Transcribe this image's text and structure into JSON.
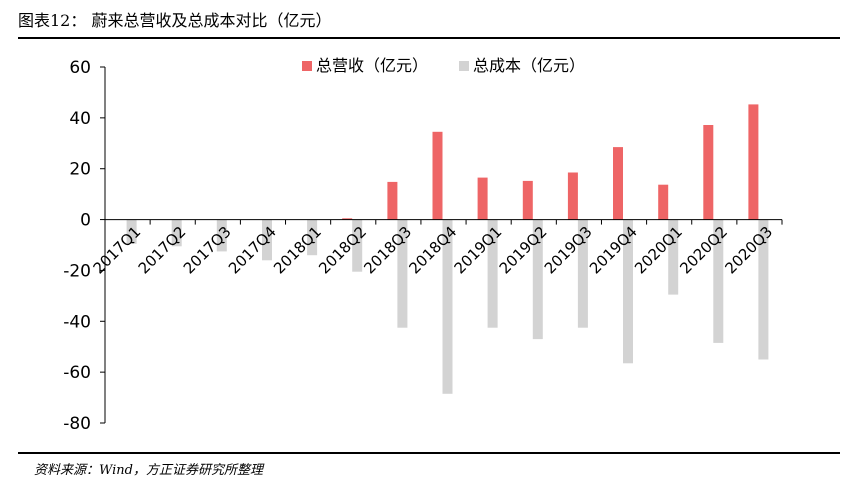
{
  "figure_title": "图表12：  蔚来总营收及总成本对比（亿元）",
  "source_note": "资料来源：Wind，方正证券研究所整理",
  "colors": {
    "revenue": "#ee6566",
    "cost": "#d3d3d3",
    "axis": "#000000"
  },
  "chart_data": {
    "type": "bar",
    "title": "",
    "xlabel": "",
    "ylabel": "",
    "ylim": [
      -80,
      60
    ],
    "yticks": [
      60,
      40,
      20,
      0,
      -20,
      -40,
      -60,
      -80
    ],
    "ytick_labels": [
      "60",
      "40",
      "20",
      "0",
      "-20",
      "-40",
      "-60",
      "-80"
    ],
    "legend_position": "top-center",
    "grid": false,
    "categories": [
      "2017Q1",
      "2017Q2",
      "2017Q3",
      "2017Q4",
      "2018Q1",
      "2018Q2",
      "2018Q3",
      "2018Q4",
      "2019Q1",
      "2019Q2",
      "2019Q3",
      "2019Q4",
      "2020Q1",
      "2020Q2",
      "2020Q3"
    ],
    "series": [
      {
        "name": "总营收（亿元）",
        "color": "#ee6566",
        "values": [
          0,
          0,
          0,
          0,
          0,
          0.5,
          14.8,
          34.5,
          16.5,
          15.2,
          18.5,
          28.5,
          13.7,
          37.2,
          45.3
        ]
      },
      {
        "name": "总成本（亿元）",
        "color": "#d3d3d3",
        "values": [
          -9.5,
          -10.5,
          -12.5,
          -16,
          -14,
          -20.5,
          -42.5,
          -68.5,
          -42.5,
          -47,
          -42.5,
          -56.5,
          -29.5,
          -48.5,
          -55
        ]
      }
    ]
  }
}
